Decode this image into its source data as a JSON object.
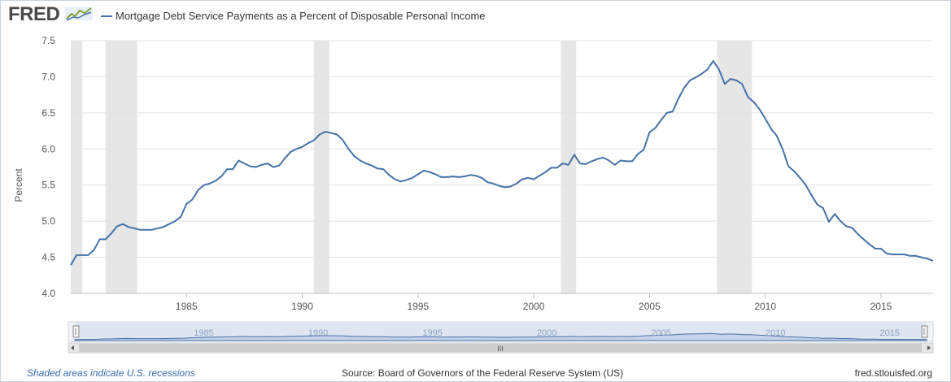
{
  "header": {
    "logo_text": "FRED",
    "title": "Mortgage Debt Service Payments as a Percent of Disposable Personal Income"
  },
  "footer": {
    "recession_note": "Shaded areas indicate U.S. recessions",
    "source": "Source: Board of Governors of the Federal Reserve System (US)",
    "url": "fred.stlouisfed.org"
  },
  "navigator": {
    "labels": [
      "1985",
      "1990",
      "1995",
      "2000",
      "2005",
      "2010",
      "2015"
    ],
    "scroll_grip": "III"
  },
  "colors": {
    "series": "#4572a7",
    "recession": "#e6e6e6",
    "navigator_fill": "#c7d3ea",
    "link": "#3a6ab0"
  },
  "chart_data": {
    "type": "line",
    "title": "Mortgage Debt Service Payments as a Percent of Disposable Personal Income",
    "xlabel": "",
    "ylabel": "Percent",
    "xlim": [
      1980.0,
      2017.25
    ],
    "ylim": [
      4.0,
      7.5
    ],
    "y_ticks": [
      "4.0",
      "4.5",
      "5.0",
      "5.5",
      "6.0",
      "6.5",
      "7.0",
      "7.5"
    ],
    "x_ticks": [
      "1985",
      "1990",
      "1995",
      "2000",
      "2005",
      "2010",
      "2015"
    ],
    "grid": true,
    "legend": "top-left",
    "recessions": [
      [
        1980.0,
        1980.5
      ],
      [
        1981.5,
        1982.87
      ],
      [
        1990.5,
        1991.17
      ],
      [
        2001.17,
        2001.83
      ],
      [
        2007.92,
        2009.42
      ]
    ],
    "series": [
      {
        "name": "Mortgage Debt Service Payments as a Percent of Disposable Personal Income",
        "x": [
          1980.0,
          1980.25,
          1980.5,
          1980.75,
          1981.0,
          1981.25,
          1981.5,
          1981.75,
          1982.0,
          1982.25,
          1982.5,
          1982.75,
          1983.0,
          1983.25,
          1983.5,
          1983.75,
          1984.0,
          1984.25,
          1984.5,
          1984.75,
          1985.0,
          1985.25,
          1985.5,
          1985.75,
          1986.0,
          1986.25,
          1986.5,
          1986.75,
          1987.0,
          1987.25,
          1987.5,
          1987.75,
          1988.0,
          1988.25,
          1988.5,
          1988.75,
          1989.0,
          1989.25,
          1989.5,
          1989.75,
          1990.0,
          1990.25,
          1990.5,
          1990.75,
          1991.0,
          1991.25,
          1991.5,
          1991.75,
          1992.0,
          1992.25,
          1992.5,
          1992.75,
          1993.0,
          1993.25,
          1993.5,
          1993.75,
          1994.0,
          1994.25,
          1994.5,
          1994.75,
          1995.0,
          1995.25,
          1995.5,
          1995.75,
          1996.0,
          1996.25,
          1996.5,
          1996.75,
          1997.0,
          1997.25,
          1997.5,
          1997.75,
          1998.0,
          1998.25,
          1998.5,
          1998.75,
          1999.0,
          1999.25,
          1999.5,
          1999.75,
          2000.0,
          2000.25,
          2000.5,
          2000.75,
          2001.0,
          2001.25,
          2001.5,
          2001.75,
          2002.0,
          2002.25,
          2002.5,
          2002.75,
          2003.0,
          2003.25,
          2003.5,
          2003.75,
          2004.0,
          2004.25,
          2004.5,
          2004.75,
          2005.0,
          2005.25,
          2005.5,
          2005.75,
          2006.0,
          2006.25,
          2006.5,
          2006.75,
          2007.0,
          2007.25,
          2007.5,
          2007.75,
          2008.0,
          2008.25,
          2008.5,
          2008.75,
          2009.0,
          2009.25,
          2009.5,
          2009.75,
          2010.0,
          2010.25,
          2010.5,
          2010.75,
          2011.0,
          2011.25,
          2011.5,
          2011.75,
          2012.0,
          2012.25,
          2012.5,
          2012.75,
          2013.0,
          2013.25,
          2013.5,
          2013.75,
          2014.0,
          2014.25,
          2014.5,
          2014.75,
          2015.0,
          2015.25,
          2015.5,
          2015.75,
          2016.0,
          2016.25,
          2016.5,
          2016.75,
          2017.0,
          2017.25
        ],
        "y": [
          4.39,
          4.53,
          4.53,
          4.53,
          4.6,
          4.75,
          4.75,
          4.83,
          4.93,
          4.96,
          4.92,
          4.9,
          4.88,
          4.88,
          4.88,
          4.9,
          4.92,
          4.96,
          5.0,
          5.06,
          5.24,
          5.3,
          5.43,
          5.5,
          5.52,
          5.56,
          5.62,
          5.72,
          5.72,
          5.84,
          5.8,
          5.76,
          5.75,
          5.78,
          5.8,
          5.75,
          5.77,
          5.87,
          5.96,
          6.0,
          6.03,
          6.08,
          6.12,
          6.2,
          6.24,
          6.22,
          6.2,
          6.12,
          6.0,
          5.9,
          5.84,
          5.8,
          5.77,
          5.73,
          5.72,
          5.64,
          5.58,
          5.55,
          5.57,
          5.6,
          5.65,
          5.7,
          5.68,
          5.65,
          5.61,
          5.61,
          5.62,
          5.61,
          5.62,
          5.64,
          5.63,
          5.6,
          5.54,
          5.52,
          5.49,
          5.47,
          5.48,
          5.52,
          5.58,
          5.6,
          5.58,
          5.63,
          5.68,
          5.74,
          5.74,
          5.8,
          5.78,
          5.92,
          5.8,
          5.79,
          5.83,
          5.86,
          5.88,
          5.84,
          5.78,
          5.84,
          5.83,
          5.83,
          5.93,
          5.99,
          6.23,
          6.29,
          6.4,
          6.5,
          6.52,
          6.7,
          6.85,
          6.95,
          6.99,
          7.04,
          7.1,
          7.22,
          7.1,
          6.9,
          6.97,
          6.95,
          6.9,
          6.72,
          6.65,
          6.55,
          6.42,
          6.28,
          6.18,
          6.0,
          5.76,
          5.69,
          5.6,
          5.5,
          5.36,
          5.23,
          5.18,
          4.99,
          5.1,
          5.0,
          4.93,
          4.91,
          4.82,
          4.75,
          4.68,
          4.62,
          4.62,
          4.55,
          4.54,
          4.54,
          4.54,
          4.52,
          4.52,
          4.5,
          4.48,
          4.45
        ]
      }
    ]
  }
}
